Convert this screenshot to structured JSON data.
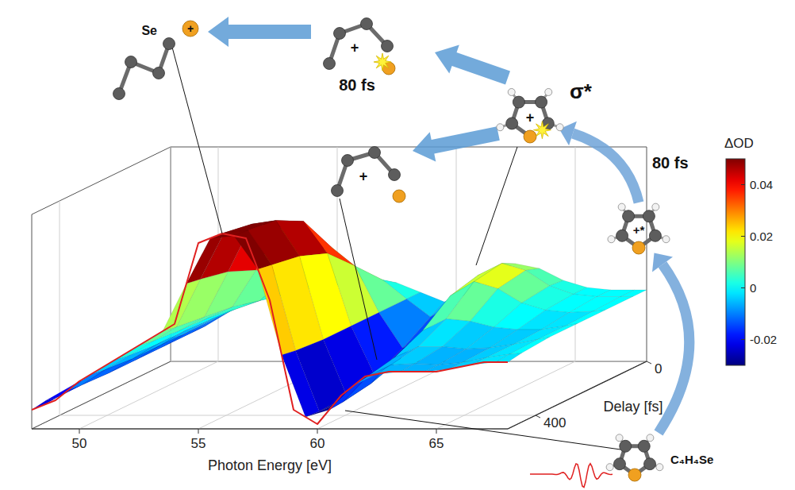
{
  "chart_data": {
    "type": "surface",
    "x_label": "Photon Energy [eV]",
    "y_label": "Delay [fs]",
    "x": [
      48,
      49,
      50,
      51,
      52,
      53,
      54,
      55,
      56,
      57,
      58,
      59,
      60,
      61,
      62,
      63,
      64,
      65,
      66,
      67,
      68
    ],
    "y": [
      0,
      100,
      200,
      300,
      400,
      500
    ],
    "z": [
      [
        -0.02,
        -0.018,
        -0.012,
        -0.006,
        -0.002,
        0,
        0,
        0.002,
        0.004,
        0.004,
        0.002,
        -0.004,
        -0.006,
        0.004,
        0.01,
        0.012,
        0.006,
        0.002,
        0,
        0,
        0
      ],
      [
        -0.02,
        -0.018,
        -0.012,
        -0.006,
        -0.002,
        0,
        0.004,
        0.012,
        0.016,
        0.014,
        0.008,
        -0.01,
        -0.014,
        0.006,
        0.016,
        0.018,
        0.008,
        0.002,
        0,
        0,
        0
      ],
      [
        -0.02,
        -0.018,
        -0.012,
        -0.006,
        0,
        0.004,
        0.008,
        0.03,
        0.04,
        0.036,
        0.016,
        -0.018,
        -0.022,
        -0.004,
        0.006,
        0.008,
        0.002,
        0,
        -0.002,
        -0.002,
        0
      ],
      [
        -0.02,
        -0.018,
        -0.012,
        -0.006,
        0,
        0.006,
        0.01,
        0.042,
        0.05,
        0.046,
        0.02,
        -0.022,
        -0.026,
        -0.01,
        -0.004,
        -0.002,
        -0.004,
        -0.004,
        -0.004,
        -0.002,
        0
      ],
      [
        -0.02,
        -0.018,
        -0.012,
        -0.006,
        0,
        0.006,
        0.012,
        0.046,
        0.052,
        0.048,
        0.022,
        -0.024,
        -0.028,
        -0.014,
        -0.006,
        -0.004,
        -0.006,
        -0.006,
        -0.004,
        -0.002,
        0
      ],
      [
        -0.022,
        -0.018,
        -0.01,
        -0.004,
        0.002,
        0.008,
        0.014,
        0.048,
        0.052,
        0.05,
        0.024,
        -0.022,
        -0.028,
        -0.016,
        -0.008,
        -0.006,
        -0.006,
        -0.006,
        -0.004,
        -0.002,
        -0.002
      ]
    ],
    "xlim": [
      48,
      68
    ],
    "ylim": [
      0,
      500
    ],
    "zlim": [
      -0.03,
      0.06
    ],
    "xticks": [
      50,
      55,
      60,
      65
    ],
    "yticks": [
      0,
      400
    ],
    "grid": true,
    "colorbar": {
      "label": "ΔOD",
      "range": [
        -0.03,
        0.05
      ],
      "ticks": [
        -0.02,
        0,
        0.02,
        0.04
      ]
    },
    "annotations": [
      {
        "text": "Se"
      },
      {
        "text": "+"
      },
      {
        "text": "80 fs"
      },
      {
        "text": "+"
      },
      {
        "text": "σ*"
      },
      {
        "text": "+"
      },
      {
        "text": "+"
      },
      {
        "text": "80 fs"
      },
      {
        "text": "+*"
      },
      {
        "text": "C₄H₄Se"
      }
    ]
  }
}
